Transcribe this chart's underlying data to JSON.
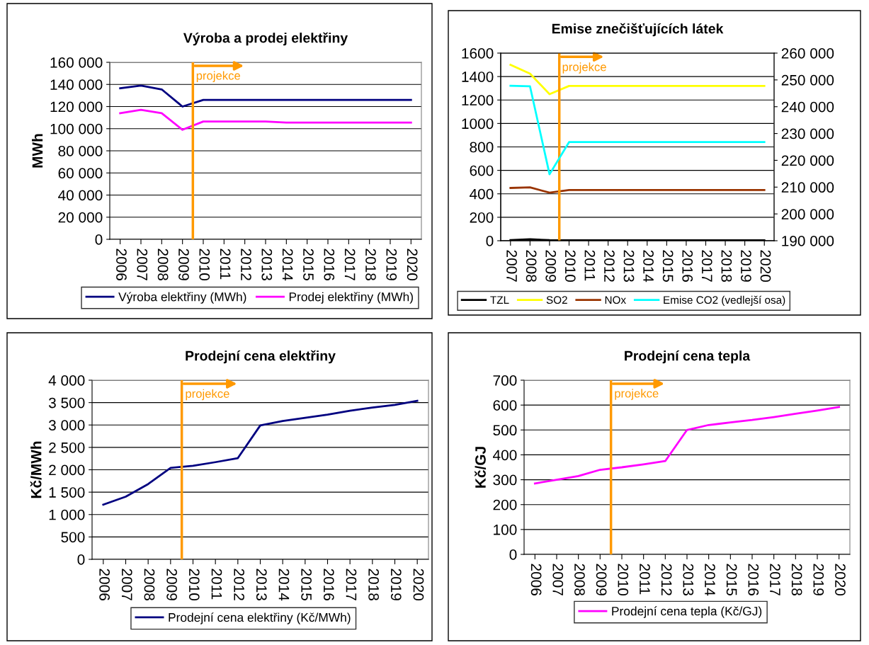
{
  "chart_data": [
    {
      "type": "line",
      "title": "Výroba a prodej elektřiny",
      "ylabel": "MWh",
      "x": [
        2006,
        2007,
        2008,
        2009,
        2010,
        2011,
        2012,
        2013,
        2014,
        2015,
        2016,
        2017,
        2018,
        2019,
        2020
      ],
      "xlim": [
        2005.5,
        2020.5
      ],
      "xticks": [
        2006,
        2007,
        2008,
        2009,
        2010,
        2011,
        2012,
        2013,
        2014,
        2015,
        2016,
        2017,
        2018,
        2019,
        2020
      ],
      "series": [
        {
          "name": "Výroba elektřiny (MWh)",
          "color": "#000080",
          "values": [
            136500,
            139000,
            135500,
            120000,
            126000,
            126000,
            126000,
            126000,
            126000,
            126000,
            126000,
            126000,
            126000,
            126000,
            126000
          ]
        },
        {
          "name": "Prodej elektřiny (MWh)",
          "color": "#ff00ff",
          "values": [
            114000,
            117000,
            114000,
            99000,
            106500,
            106500,
            106500,
            106500,
            105500,
            105500,
            105500,
            105500,
            105500,
            105500,
            105500
          ]
        }
      ],
      "ylim": [
        0,
        160000
      ],
      "yticks": [
        {
          "value": 0,
          "label": "0"
        },
        {
          "value": 20000,
          "label": "20 000"
        },
        {
          "value": 40000,
          "label": "40 000"
        },
        {
          "value": 60000,
          "label": "60 000"
        },
        {
          "value": 80000,
          "label": "80 000"
        },
        {
          "value": 100000,
          "label": "100 000"
        },
        {
          "value": 120000,
          "label": "120 000"
        },
        {
          "value": 140000,
          "label": "140 000"
        },
        {
          "value": 160000,
          "label": "160 000"
        }
      ],
      "ref_lines": [
        {
          "axis": "x",
          "value": 2009.5,
          "label": "projekce",
          "color": "#ff9900"
        }
      ],
      "grid": "y",
      "legend": "bottom",
      "marker": "none",
      "line_style": "solid"
    },
    {
      "type": "line",
      "title": "Emise znečišťujících látek",
      "x": [
        2007,
        2008,
        2009,
        2010,
        2011,
        2012,
        2013,
        2014,
        2015,
        2016,
        2017,
        2018,
        2019,
        2020
      ],
      "xlim": [
        2006.5,
        2020.5
      ],
      "xticks": [
        2007,
        2008,
        2009,
        2010,
        2011,
        2012,
        2013,
        2014,
        2015,
        2016,
        2017,
        2018,
        2019,
        2020
      ],
      "series": [
        {
          "name": "TZL",
          "color": "#000000",
          "values": [
            5,
            12,
            5,
            3,
            3,
            3,
            3,
            3,
            3,
            3,
            3,
            3,
            3,
            3
          ]
        },
        {
          "name": "SO2",
          "color": "#ffff00",
          "values": [
            1500,
            1425,
            1250,
            1320,
            1320,
            1320,
            1320,
            1320,
            1320,
            1320,
            1320,
            1320,
            1320,
            1320
          ]
        },
        {
          "name": "NOx",
          "color": "#993300",
          "values": [
            450,
            455,
            410,
            432,
            432,
            432,
            432,
            432,
            432,
            432,
            432,
            432,
            432,
            432
          ]
        },
        {
          "name": "Emise CO2 (vedlejší osa)",
          "color": "#00ffff",
          "axis": "y2",
          "values": [
            247800,
            247600,
            214800,
            226800,
            226800,
            226800,
            226800,
            226800,
            226800,
            226800,
            226800,
            226800,
            226800,
            226800
          ]
        }
      ],
      "ylim": [
        0,
        1600
      ],
      "yticks": [
        0,
        200,
        400,
        600,
        800,
        1000,
        1200,
        1400,
        1600
      ],
      "y2lim": [
        190000,
        260000
      ],
      "y2ticks": [
        {
          "value": 190000,
          "label": "190 000"
        },
        {
          "value": 200000,
          "label": "200 000"
        },
        {
          "value": 210000,
          "label": "210 000"
        },
        {
          "value": 220000,
          "label": "220 000"
        },
        {
          "value": 230000,
          "label": "230 000"
        },
        {
          "value": 240000,
          "label": "240 000"
        },
        {
          "value": 250000,
          "label": "250 000"
        },
        {
          "value": 260000,
          "label": "260 000"
        }
      ],
      "ref_lines": [
        {
          "axis": "x",
          "value": 2009.5,
          "label": "projekce",
          "color": "#ff9900"
        }
      ],
      "grid": "y",
      "legend": "bottom",
      "marker": "none",
      "line_style": "solid"
    },
    {
      "type": "line",
      "title": "Prodejní cena elektřiny",
      "ylabel": "Kč/MWh",
      "x": [
        2006,
        2007,
        2008,
        2009,
        2010,
        2011,
        2012,
        2013,
        2014,
        2015,
        2016,
        2017,
        2018,
        2019,
        2020
      ],
      "xlim": [
        2005.5,
        2020.5
      ],
      "xticks": [
        2006,
        2007,
        2008,
        2009,
        2010,
        2011,
        2012,
        2013,
        2014,
        2015,
        2016,
        2017,
        2018,
        2019,
        2020
      ],
      "series": [
        {
          "name": "Prodejní cena elektřiny (Kč/MWh)",
          "color": "#000080",
          "values": [
            1220,
            1400,
            1680,
            2040,
            2090,
            2170,
            2260,
            2990,
            3090,
            3160,
            3230,
            3320,
            3390,
            3450,
            3540
          ]
        }
      ],
      "ylim": [
        0,
        4000
      ],
      "yticks": [
        {
          "value": 0,
          "label": "0"
        },
        {
          "value": 500,
          "label": "500"
        },
        {
          "value": 1000,
          "label": "1 000"
        },
        {
          "value": 1500,
          "label": "1 500"
        },
        {
          "value": 2000,
          "label": "2 000"
        },
        {
          "value": 2500,
          "label": "2 500"
        },
        {
          "value": 3000,
          "label": "3 000"
        },
        {
          "value": 3500,
          "label": "3 500"
        },
        {
          "value": 4000,
          "label": "4 000"
        }
      ],
      "ref_lines": [
        {
          "axis": "x",
          "value": 2009.5,
          "label": "projekce",
          "color": "#ff9900"
        }
      ],
      "grid": "y",
      "legend": "bottom",
      "marker": "none",
      "line_style": "solid"
    },
    {
      "type": "line",
      "title": "Prodejní cena tepla",
      "ylabel": "Kč/GJ",
      "x": [
        2006,
        2007,
        2008,
        2009,
        2010,
        2011,
        2012,
        2013,
        2014,
        2015,
        2016,
        2017,
        2018,
        2019,
        2020
      ],
      "xlim": [
        2005.5,
        2020.5
      ],
      "xticks": [
        2006,
        2007,
        2008,
        2009,
        2010,
        2011,
        2012,
        2013,
        2014,
        2015,
        2016,
        2017,
        2018,
        2019,
        2020
      ],
      "series": [
        {
          "name": "Prodejní cena tepla (Kč/GJ)",
          "color": "#ff00ff",
          "values": [
            285,
            300,
            315,
            340,
            350,
            362,
            375,
            500,
            520,
            530,
            540,
            552,
            565,
            578,
            592
          ]
        }
      ],
      "ylim": [
        0,
        700
      ],
      "yticks": [
        0,
        100,
        200,
        300,
        400,
        500,
        600,
        700
      ],
      "ref_lines": [
        {
          "axis": "x",
          "value": 2009.5,
          "label": "projekce",
          "color": "#ff9900"
        }
      ],
      "grid": "y",
      "legend": "bottom",
      "marker": "none",
      "line_style": "solid"
    }
  ]
}
